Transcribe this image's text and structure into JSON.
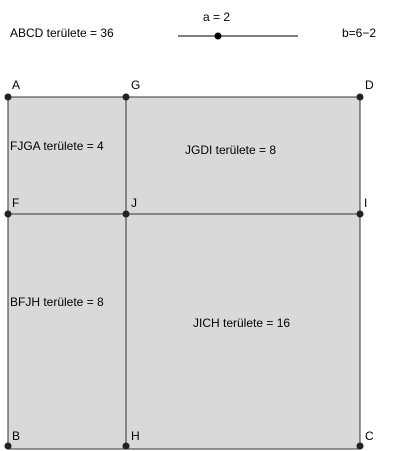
{
  "header": {
    "area_text": "ABCD területe = 36",
    "slider_label": "a = 2",
    "b_text": "b=6−2"
  },
  "slider": {
    "value": 2,
    "min": 0,
    "max": 6
  },
  "points": {
    "A": "A",
    "G": "G",
    "D": "D",
    "F": "F",
    "J": "J",
    "I": "I",
    "B": "B",
    "H": "H",
    "C": "C"
  },
  "regions": {
    "fjga": "FJGA területe = 4",
    "jgdi": "JGDI területe = 8",
    "bfjh": "BFJH területe = 8",
    "jich": "JICH területe = 16"
  },
  "colors": {
    "fill": "#d9d9d9",
    "stroke": "#333333",
    "point": "#222222"
  }
}
